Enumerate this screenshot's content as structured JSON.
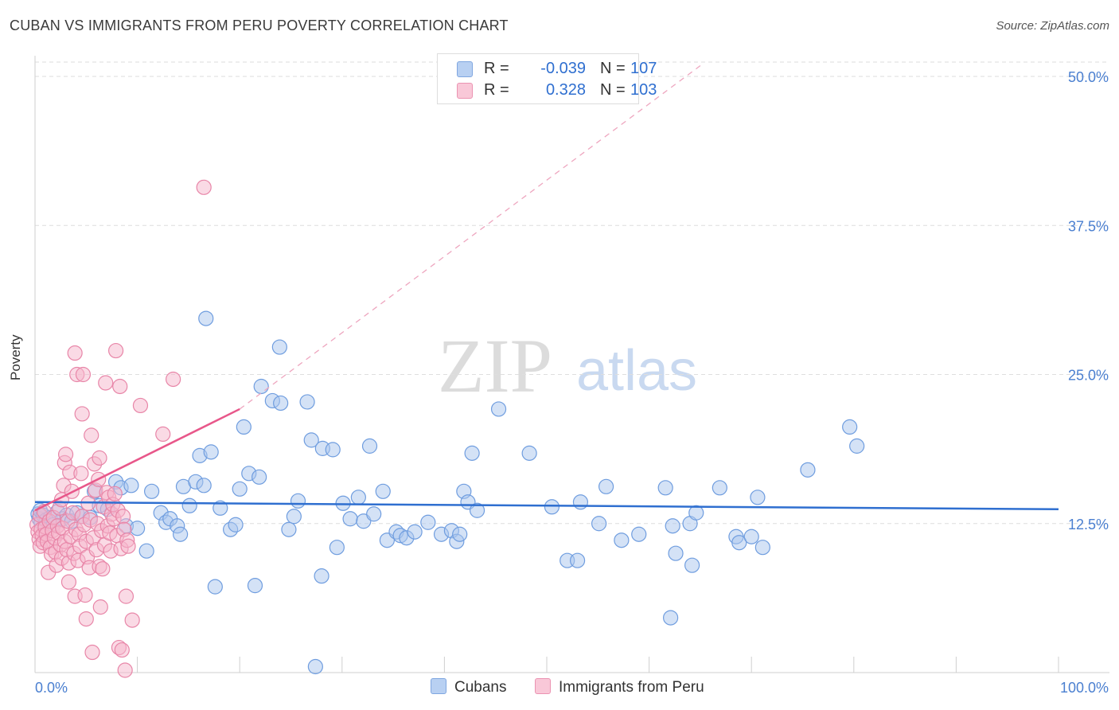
{
  "title": "CUBAN VS IMMIGRANTS FROM PERU POVERTY CORRELATION CHART",
  "source": "Source: ZipAtlas.com",
  "watermark": {
    "zip": "ZIP",
    "atlas": "atlas"
  },
  "colors": {
    "blue": "#2f6fd0",
    "blue_fill": "#a9c6ee",
    "pink": "#e8578a",
    "pink_fill": "#f6b6cb",
    "tick": "#4a7fd0"
  },
  "legend": {
    "rows": [
      {
        "r_label": "R =",
        "r_value": "-0.039",
        "n_label": "N =",
        "n_value": "107"
      },
      {
        "r_label": "R =",
        "r_value": "0.328",
        "n_label": "N =",
        "n_value": "103"
      }
    ]
  },
  "bottom_legend": {
    "series1": "Cubans",
    "series2": "Immigrants from Peru"
  },
  "chart_data": {
    "type": "scatter",
    "title": "CUBAN VS IMMIGRANTS FROM PERU POVERTY CORRELATION CHART",
    "xlabel": "",
    "ylabel": "Poverty",
    "xlim": [
      0,
      100
    ],
    "ylim": [
      0,
      52
    ],
    "x_tick_labels": [
      "0.0%",
      "100.0%"
    ],
    "y_ticks": [
      12.5,
      25.0,
      37.5,
      50.0
    ],
    "y_tick_labels": [
      "12.5%",
      "25.0%",
      "37.5%",
      "50.0%"
    ],
    "grid": true,
    "series": [
      {
        "name": "Cubans",
        "color": "#2f6fd0",
        "trend": {
          "x": [
            0,
            100
          ],
          "y": [
            14.3,
            13.7
          ]
        },
        "points": [
          [
            0.3,
            13.3
          ],
          [
            0.4,
            12.9
          ],
          [
            0.5,
            13.6
          ],
          [
            0.6,
            12.6
          ],
          [
            0.8,
            13.2
          ],
          [
            1.1,
            12.8
          ],
          [
            1.5,
            13.0
          ],
          [
            1.8,
            12.4
          ],
          [
            2.2,
            13.5
          ],
          [
            2.7,
            12.9
          ],
          [
            3.1,
            13.2
          ],
          [
            3.6,
            12.7
          ],
          [
            4.1,
            13.4
          ],
          [
            4.6,
            13.1
          ],
          [
            5.4,
            13.0
          ],
          [
            5.8,
            15.2
          ],
          [
            6.3,
            14.0
          ],
          [
            7.1,
            13.7
          ],
          [
            7.9,
            16.0
          ],
          [
            8.4,
            15.5
          ],
          [
            8.9,
            12.3
          ],
          [
            9.4,
            15.7
          ],
          [
            10.0,
            12.1
          ],
          [
            10.9,
            10.2
          ],
          [
            11.4,
            15.2
          ],
          [
            12.3,
            13.4
          ],
          [
            12.8,
            12.6
          ],
          [
            13.2,
            12.9
          ],
          [
            13.9,
            12.3
          ],
          [
            14.2,
            11.6
          ],
          [
            14.5,
            15.6
          ],
          [
            15.1,
            14.0
          ],
          [
            15.7,
            16.0
          ],
          [
            16.1,
            18.2
          ],
          [
            16.5,
            15.7
          ],
          [
            16.7,
            29.7
          ],
          [
            17.2,
            18.5
          ],
          [
            17.6,
            7.2
          ],
          [
            18.1,
            13.8
          ],
          [
            19.1,
            12.0
          ],
          [
            19.6,
            12.4
          ],
          [
            20.0,
            15.4
          ],
          [
            20.4,
            20.6
          ],
          [
            20.9,
            16.7
          ],
          [
            21.5,
            7.3
          ],
          [
            21.9,
            16.4
          ],
          [
            22.1,
            24.0
          ],
          [
            23.2,
            22.8
          ],
          [
            23.9,
            27.3
          ],
          [
            24.0,
            22.6
          ],
          [
            24.8,
            12.0
          ],
          [
            25.3,
            13.1
          ],
          [
            25.7,
            14.4
          ],
          [
            26.6,
            22.7
          ],
          [
            27.0,
            19.5
          ],
          [
            27.4,
            0.5
          ],
          [
            28.0,
            8.1
          ],
          [
            28.1,
            18.8
          ],
          [
            29.1,
            18.7
          ],
          [
            29.5,
            10.5
          ],
          [
            30.1,
            14.2
          ],
          [
            30.8,
            12.9
          ],
          [
            31.6,
            14.7
          ],
          [
            32.1,
            12.7
          ],
          [
            32.7,
            19.0
          ],
          [
            33.1,
            13.3
          ],
          [
            34.0,
            15.2
          ],
          [
            34.4,
            11.1
          ],
          [
            35.3,
            11.8
          ],
          [
            35.7,
            11.5
          ],
          [
            36.3,
            11.3
          ],
          [
            37.1,
            11.8
          ],
          [
            38.4,
            12.6
          ],
          [
            39.7,
            11.6
          ],
          [
            40.7,
            11.9
          ],
          [
            41.2,
            11.0
          ],
          [
            41.5,
            11.6
          ],
          [
            41.9,
            15.2
          ],
          [
            42.3,
            14.3
          ],
          [
            42.7,
            18.4
          ],
          [
            43.2,
            13.6
          ],
          [
            45.3,
            22.1
          ],
          [
            48.3,
            18.4
          ],
          [
            50.5,
            13.9
          ],
          [
            52.0,
            9.4
          ],
          [
            53.0,
            9.4
          ],
          [
            53.3,
            14.3
          ],
          [
            55.1,
            12.5
          ],
          [
            55.8,
            15.6
          ],
          [
            57.3,
            11.1
          ],
          [
            59.0,
            11.6
          ],
          [
            61.6,
            15.5
          ],
          [
            62.1,
            4.6
          ],
          [
            62.3,
            12.3
          ],
          [
            62.6,
            10.0
          ],
          [
            64.0,
            12.5
          ],
          [
            64.2,
            9.0
          ],
          [
            64.6,
            13.4
          ],
          [
            66.9,
            15.5
          ],
          [
            68.5,
            11.4
          ],
          [
            68.8,
            10.9
          ],
          [
            70.0,
            11.4
          ],
          [
            70.6,
            14.7
          ],
          [
            71.1,
            10.5
          ],
          [
            75.5,
            17.0
          ],
          [
            79.6,
            20.6
          ],
          [
            80.3,
            19.0
          ]
        ]
      },
      {
        "name": "Immigrants from Peru",
        "color": "#e8578a",
        "trend": {
          "x": [
            0,
            20
          ],
          "y": [
            13.6,
            22.1
          ],
          "extended": {
            "x": [
              20,
              65
            ],
            "y": [
              22.1,
              50.9
            ]
          }
        },
        "points": [
          [
            0.2,
            12.4
          ],
          [
            0.3,
            11.8
          ],
          [
            0.4,
            11.2
          ],
          [
            0.5,
            10.6
          ],
          [
            0.5,
            13.2
          ],
          [
            0.6,
            12.0
          ],
          [
            0.7,
            11.5
          ],
          [
            0.8,
            10.9
          ],
          [
            0.9,
            13.5
          ],
          [
            1.0,
            12.2
          ],
          [
            1.1,
            11.6
          ],
          [
            1.2,
            11.0
          ],
          [
            1.3,
            8.4
          ],
          [
            1.4,
            12.7
          ],
          [
            1.5,
            10.5
          ],
          [
            1.6,
            9.9
          ],
          [
            1.7,
            11.9
          ],
          [
            1.8,
            13.0
          ],
          [
            1.9,
            11.3
          ],
          [
            2.0,
            10.1
          ],
          [
            2.1,
            9.0
          ],
          [
            2.2,
            12.3
          ],
          [
            2.3,
            11.7
          ],
          [
            2.4,
            13.8
          ],
          [
            2.5,
            10.7
          ],
          [
            2.6,
            9.6
          ],
          [
            2.6,
            14.5
          ],
          [
            2.7,
            12.1
          ],
          [
            2.8,
            15.7
          ],
          [
            2.9,
            11.0
          ],
          [
            2.9,
            17.6
          ],
          [
            3.0,
            18.3
          ],
          [
            3.1,
            10.3
          ],
          [
            3.2,
            12.7
          ],
          [
            3.3,
            9.2
          ],
          [
            3.3,
            7.6
          ],
          [
            3.4,
            16.8
          ],
          [
            3.5,
            11.4
          ],
          [
            3.6,
            15.2
          ],
          [
            3.7,
            13.4
          ],
          [
            3.8,
            10.0
          ],
          [
            3.9,
            6.4
          ],
          [
            3.9,
            26.8
          ],
          [
            4.0,
            12.0
          ],
          [
            4.1,
            25.0
          ],
          [
            4.2,
            9.4
          ],
          [
            4.3,
            11.6
          ],
          [
            4.4,
            10.6
          ],
          [
            4.5,
            16.7
          ],
          [
            4.6,
            21.7
          ],
          [
            4.6,
            13.1
          ],
          [
            4.7,
            25.0
          ],
          [
            4.8,
            12.4
          ],
          [
            4.9,
            6.5
          ],
          [
            5.0,
            11.0
          ],
          [
            5.0,
            4.5
          ],
          [
            5.1,
            9.7
          ],
          [
            5.2,
            14.2
          ],
          [
            5.3,
            8.8
          ],
          [
            5.4,
            12.8
          ],
          [
            5.5,
            19.9
          ],
          [
            5.6,
            1.7
          ],
          [
            5.7,
            11.3
          ],
          [
            5.8,
            17.5
          ],
          [
            5.9,
            15.3
          ],
          [
            6.0,
            10.3
          ],
          [
            6.1,
            12.5
          ],
          [
            6.2,
            16.2
          ],
          [
            6.3,
            8.9
          ],
          [
            6.3,
            18.0
          ],
          [
            6.4,
            5.5
          ],
          [
            6.5,
            11.9
          ],
          [
            6.6,
            8.7
          ],
          [
            6.7,
            13.9
          ],
          [
            6.8,
            10.7
          ],
          [
            6.9,
            24.3
          ],
          [
            7.0,
            15.1
          ],
          [
            7.1,
            12.3
          ],
          [
            7.2,
            14.7
          ],
          [
            7.3,
            11.7
          ],
          [
            7.4,
            10.2
          ],
          [
            7.5,
            13.3
          ],
          [
            7.6,
            14.1
          ],
          [
            7.7,
            12.9
          ],
          [
            7.8,
            15.0
          ],
          [
            7.9,
            27.0
          ],
          [
            8.0,
            11.5
          ],
          [
            8.1,
            13.6
          ],
          [
            8.2,
            2.1
          ],
          [
            8.3,
            24.0
          ],
          [
            8.4,
            10.4
          ],
          [
            8.5,
            1.9
          ],
          [
            8.6,
            13.1
          ],
          [
            8.7,
            12.0
          ],
          [
            8.8,
            0.2
          ],
          [
            8.9,
            6.4
          ],
          [
            9.0,
            11.1
          ],
          [
            9.1,
            10.6
          ],
          [
            9.5,
            4.4
          ],
          [
            10.3,
            22.4
          ],
          [
            12.5,
            20.0
          ],
          [
            13.5,
            24.6
          ],
          [
            16.5,
            40.7
          ]
        ]
      }
    ]
  }
}
